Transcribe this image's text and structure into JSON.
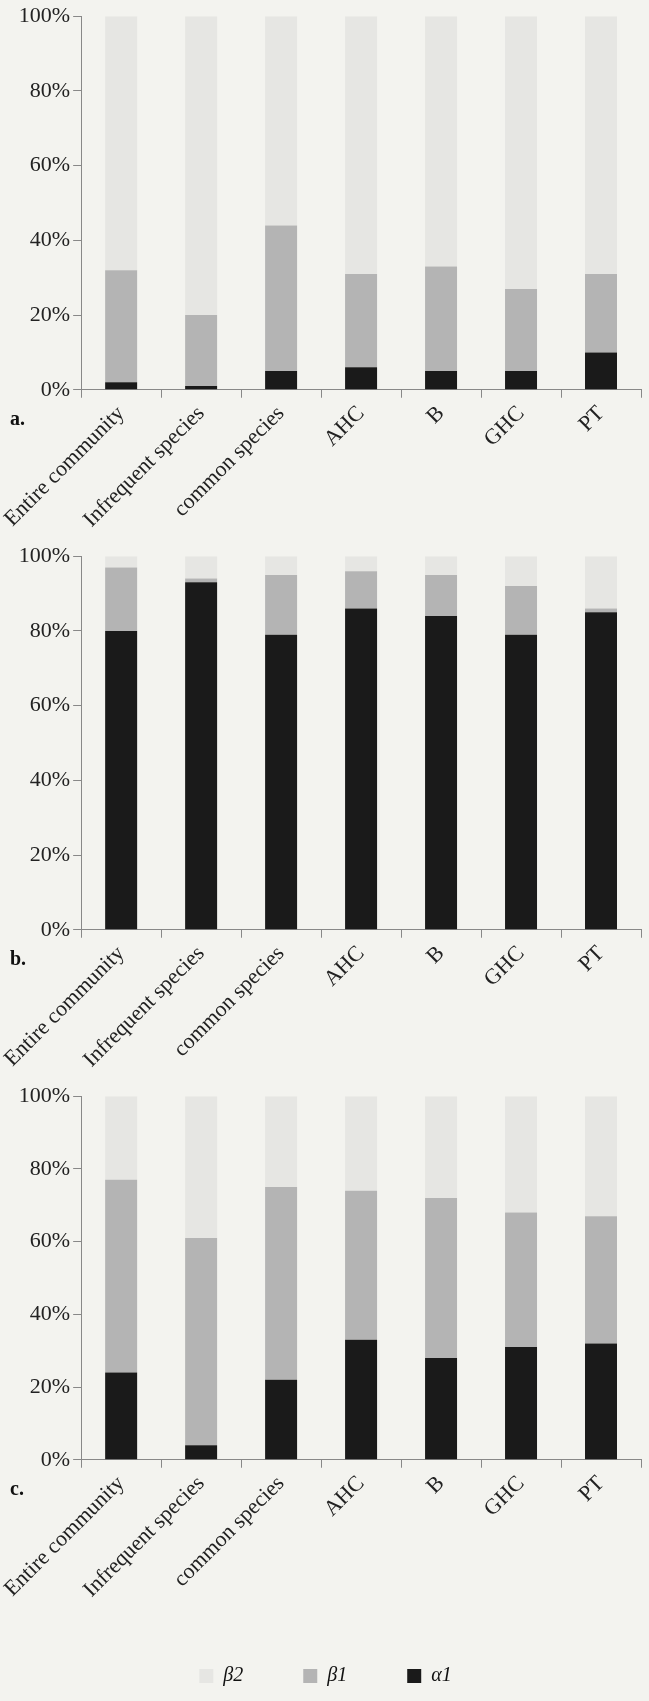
{
  "chart_data": [
    {
      "type": "bar",
      "stacked": true,
      "categories": [
        "Entire community",
        "Infrequent species",
        "common species",
        "AHC",
        "B",
        "GHC",
        "PT"
      ],
      "series": [
        {
          "color": "#1a1a1a",
          "values": [
            2,
            1,
            5,
            6,
            5,
            5,
            10
          ]
        },
        {
          "color": "#b4b4b4",
          "values": [
            30,
            19,
            39,
            25,
            28,
            22,
            21
          ]
        },
        {
          "color": "#e6e6e3",
          "values": [
            68,
            80,
            56,
            69,
            67,
            73,
            69
          ]
        }
      ],
      "ylim": [
        0,
        100
      ],
      "yticks": [
        {
          "value": 0,
          "label": "0%"
        },
        {
          "value": 20,
          "label": "20%"
        },
        {
          "value": 40,
          "label": "40%"
        },
        {
          "value": 60,
          "label": "60%"
        },
        {
          "value": 80,
          "label": "80%"
        },
        {
          "value": 100,
          "label": "100%"
        }
      ],
      "grid": false,
      "legend": false,
      "annotations": [
        "a."
      ]
    },
    {
      "type": "bar",
      "stacked": true,
      "categories": [
        "Entire community",
        "Infrequent species",
        "common species",
        "AHC",
        "B",
        "GHC",
        "PT"
      ],
      "series": [
        {
          "color": "#1a1a1a",
          "values": [
            80,
            93,
            79,
            86,
            84,
            79,
            85
          ]
        },
        {
          "color": "#b4b4b4",
          "values": [
            17,
            1,
            16,
            10,
            11,
            13,
            1
          ]
        },
        {
          "color": "#e6e6e3",
          "values": [
            3,
            6,
            5,
            4,
            5,
            8,
            14
          ]
        }
      ],
      "ylim": [
        0,
        100
      ],
      "yticks": [
        {
          "value": 0,
          "label": "0%"
        },
        {
          "value": 20,
          "label": "20%"
        },
        {
          "value": 40,
          "label": "40%"
        },
        {
          "value": 60,
          "label": "60%"
        },
        {
          "value": 80,
          "label": "80%"
        },
        {
          "value": 100,
          "label": "100%"
        }
      ],
      "grid": false,
      "legend": false,
      "annotations": [
        "b."
      ]
    },
    {
      "type": "bar",
      "stacked": true,
      "categories": [
        "Entire community",
        "Infrequent species",
        "common species",
        "AHC",
        "B",
        "GHC",
        "PT"
      ],
      "series": [
        {
          "name": "α1",
          "color": "#1a1a1a",
          "values": [
            24,
            4,
            22,
            33,
            28,
            31,
            32
          ]
        },
        {
          "name": "β1",
          "color": "#b4b4b4",
          "values": [
            53,
            57,
            53,
            41,
            44,
            37,
            35
          ]
        },
        {
          "name": "β2",
          "color": "#e6e6e3",
          "values": [
            23,
            39,
            25,
            26,
            28,
            32,
            33
          ]
        }
      ],
      "ylim": [
        0,
        100
      ],
      "yticks": [
        {
          "value": 0,
          "label": "0%"
        },
        {
          "value": 20,
          "label": "20%"
        },
        {
          "value": 40,
          "label": "40%"
        },
        {
          "value": 60,
          "label": "60%"
        },
        {
          "value": 80,
          "label": "80%"
        },
        {
          "value": 100,
          "label": "100%"
        }
      ],
      "grid": false,
      "legend": "bottom",
      "annotations": [
        "c."
      ]
    }
  ]
}
